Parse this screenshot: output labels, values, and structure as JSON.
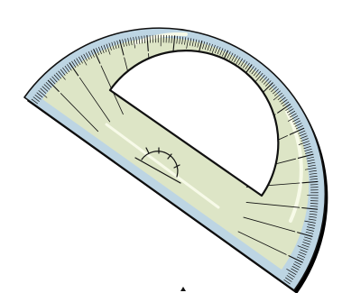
{
  "illustration": {
    "subject": "protractor-icon",
    "colors": {
      "outer_band": "#bdd5e3",
      "inner_band": "#dde5c6",
      "highlight": "#f7fae8",
      "outline": "#111111",
      "shadow": "#000000",
      "hole": "#ffffff"
    }
  }
}
